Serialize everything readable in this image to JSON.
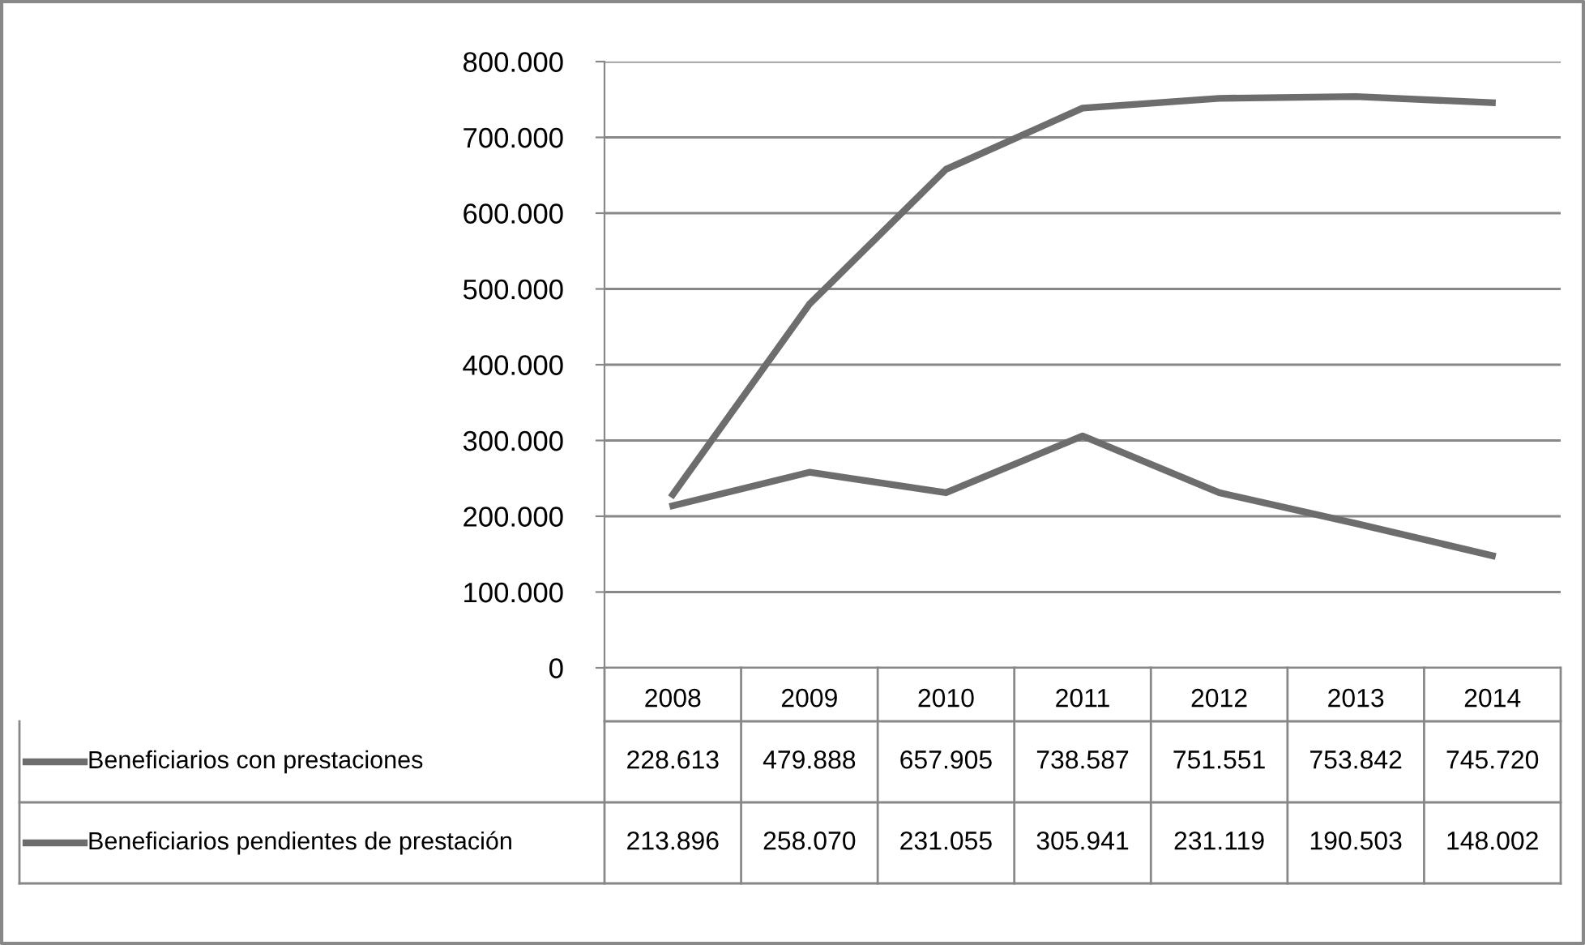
{
  "chart_data": {
    "type": "line",
    "categories": [
      "2008",
      "2009",
      "2010",
      "2011",
      "2012",
      "2013",
      "2014"
    ],
    "series": [
      {
        "name": "Beneficiarios con prestaciones",
        "color": "#6d6d6d",
        "values": [
          228613,
          479888,
          657905,
          738587,
          751551,
          753842,
          745720
        ]
      },
      {
        "name": "Beneficiarios pendientes de prestación",
        "color": "#6d6d6d",
        "values": [
          213896,
          258070,
          231055,
          305941,
          231119,
          190503,
          148002
        ]
      }
    ],
    "ylim": [
      0,
      800000
    ],
    "yticks": [
      0,
      {
        "value": 100000,
        "label": "100.000"
      },
      {
        "value": 200000,
        "label": "200.000"
      },
      {
        "value": 300000,
        "label": "300.000"
      },
      {
        "value": 400000,
        "label": "400.000"
      },
      {
        "value": 500000,
        "label": "500.000"
      },
      {
        "value": 600000,
        "label": "600.000"
      },
      {
        "value": 700000,
        "label": "700.000"
      },
      {
        "value": 800000,
        "label": "800.000"
      }
    ],
    "value_labels": [
      [
        "228.613",
        "479.888",
        "657.905",
        "738.587",
        "751.551",
        "753.842",
        "745.720"
      ],
      [
        "213.896",
        "258.070",
        "231.055",
        "305.941",
        "231.119",
        "190.503",
        "148.002"
      ]
    ],
    "grid": "y",
    "legend": "bottom left",
    "marker": "none",
    "line_style": "solid"
  }
}
